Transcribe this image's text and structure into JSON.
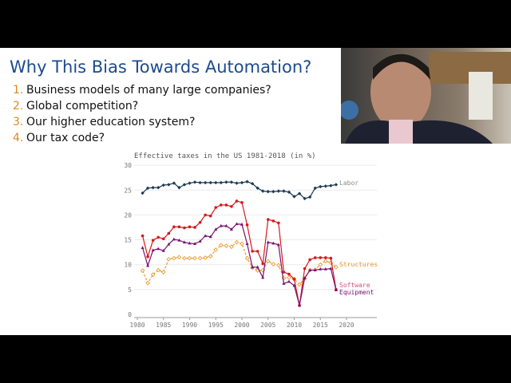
{
  "slide": {
    "title": "Why This Bias Towards Automation?",
    "items": [
      {
        "num": "1.",
        "text": "Business models of many large companies?"
      },
      {
        "num": "2.",
        "text": "Global competition?"
      },
      {
        "num": "3.",
        "text": "Our higher education system?"
      },
      {
        "num": "4.",
        "text": "Our tax code?"
      }
    ]
  },
  "chart_data": {
    "type": "line",
    "title": "Effective taxes in the US 1981-2018 (in %)",
    "xlabel": "",
    "ylabel": "",
    "xlim": [
      1980,
      2025
    ],
    "ylim": [
      0,
      30
    ],
    "x_ticks": [
      "1980",
      "1985",
      "1990",
      "1995",
      "2000",
      "2005",
      "2010",
      "2015",
      "2020"
    ],
    "y_ticks": [
      "0",
      "5",
      "10",
      "15",
      "20",
      "25",
      "30"
    ],
    "grid": true,
    "legend": "inline labels at line ends (right)",
    "x": [
      1981,
      1982,
      1983,
      1984,
      1985,
      1986,
      1987,
      1988,
      1989,
      1990,
      1991,
      1992,
      1993,
      1994,
      1995,
      1996,
      1997,
      1998,
      1999,
      2000,
      2001,
      2002,
      2003,
      2004,
      2005,
      2006,
      2007,
      2008,
      2009,
      2010,
      2011,
      2012,
      2013,
      2014,
      2015,
      2016,
      2017,
      2018
    ],
    "series": [
      {
        "name": "Labor",
        "color": "#1b3a57",
        "label_color": "#8a8a8a",
        "marker": "diamond",
        "values": [
          24.4,
          25.4,
          25.5,
          25.5,
          26.0,
          26.1,
          26.4,
          25.5,
          26.1,
          26.4,
          26.6,
          26.5,
          26.5,
          26.5,
          26.5,
          26.5,
          26.6,
          26.6,
          26.4,
          26.5,
          26.7,
          26.3,
          25.4,
          24.8,
          24.7,
          24.7,
          24.8,
          24.8,
          24.6,
          23.7,
          24.3,
          23.3,
          23.6,
          25.4,
          25.7,
          25.8,
          25.9,
          26.1
        ]
      },
      {
        "name": "Structures",
        "color": "#e89a2c",
        "label_color": "#e89a2c",
        "marker": "open-diamond",
        "dashed": true,
        "values": [
          8.8,
          6.3,
          8.0,
          8.9,
          8.5,
          11.1,
          11.3,
          11.5,
          11.3,
          11.3,
          11.3,
          11.3,
          11.4,
          11.7,
          13.0,
          13.9,
          13.8,
          13.6,
          14.5,
          14.2,
          11.3,
          9.4,
          8.8,
          8.9,
          10.7,
          10.1,
          9.9,
          7.3,
          7.4,
          7.1,
          6.0,
          7.2,
          8.9,
          9.0,
          10.0,
          10.7,
          10.4,
          9.5
        ]
      },
      {
        "name": "Software",
        "color": "#d7191c",
        "label_color": "#d0507a",
        "marker": "circle",
        "values": [
          15.8,
          11.6,
          14.9,
          15.5,
          15.2,
          16.3,
          17.6,
          17.6,
          17.4,
          17.6,
          17.5,
          18.5,
          20.0,
          19.8,
          21.5,
          22.0,
          22.0,
          21.7,
          22.8,
          22.5,
          18.0,
          12.7,
          12.7,
          10.2,
          19.1,
          18.8,
          18.4,
          8.5,
          8.1,
          7.1,
          1.8,
          9.2,
          11.0,
          11.4,
          11.4,
          11.4,
          11.3,
          5.0
        ]
      },
      {
        "name": "Equipment",
        "color": "#7a0f72",
        "label_color": "#7a0f72",
        "marker": "triangle",
        "values": [
          13.4,
          9.8,
          12.9,
          13.2,
          12.8,
          14.1,
          15.1,
          14.9,
          14.5,
          14.3,
          14.2,
          14.7,
          15.8,
          15.6,
          17.1,
          17.8,
          17.8,
          17.1,
          18.2,
          18.1,
          14.2,
          9.5,
          9.5,
          7.4,
          14.5,
          14.3,
          14.0,
          6.2,
          6.6,
          5.8,
          1.8,
          7.3,
          8.9,
          8.9,
          9.1,
          9.1,
          9.2,
          4.9
        ]
      }
    ]
  }
}
